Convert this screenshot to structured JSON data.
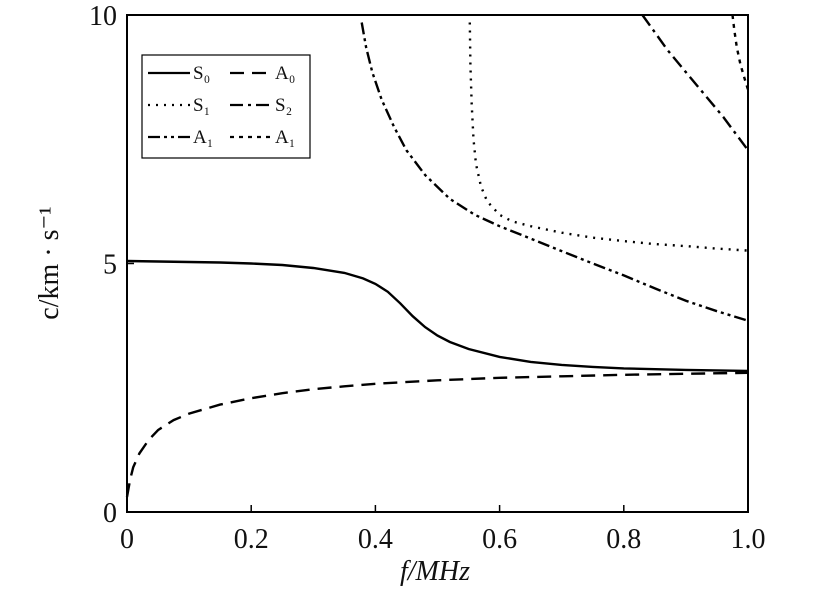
{
  "chart_data": {
    "type": "line",
    "xlabel": "f/MHz",
    "ylabel": "c/km · s⁻¹",
    "xlim": [
      0,
      1.0
    ],
    "ylim": [
      0,
      10
    ],
    "xticks": [
      "0",
      "0.2",
      "0.4",
      "0.6",
      "0.8",
      "1.0"
    ],
    "yticks": [
      "0",
      "5",
      "10"
    ],
    "grid": false,
    "legend_position": "top-left",
    "series": [
      {
        "name": "S₀",
        "style": "solid",
        "points": [
          [
            0.0,
            5.05
          ],
          [
            0.05,
            5.04
          ],
          [
            0.1,
            5.03
          ],
          [
            0.15,
            5.02
          ],
          [
            0.2,
            5.0
          ],
          [
            0.25,
            4.97
          ],
          [
            0.3,
            4.91
          ],
          [
            0.35,
            4.81
          ],
          [
            0.38,
            4.7
          ],
          [
            0.4,
            4.59
          ],
          [
            0.42,
            4.43
          ],
          [
            0.44,
            4.2
          ],
          [
            0.46,
            3.94
          ],
          [
            0.48,
            3.72
          ],
          [
            0.5,
            3.55
          ],
          [
            0.52,
            3.42
          ],
          [
            0.55,
            3.28
          ],
          [
            0.6,
            3.12
          ],
          [
            0.65,
            3.02
          ],
          [
            0.7,
            2.96
          ],
          [
            0.75,
            2.92
          ],
          [
            0.8,
            2.89
          ],
          [
            0.9,
            2.86
          ],
          [
            1.0,
            2.84
          ]
        ]
      },
      {
        "name": "A₀",
        "style": "dashed",
        "points": [
          [
            0.0,
            0.3
          ],
          [
            0.005,
            0.65
          ],
          [
            0.01,
            0.9
          ],
          [
            0.02,
            1.18
          ],
          [
            0.035,
            1.45
          ],
          [
            0.05,
            1.65
          ],
          [
            0.075,
            1.85
          ],
          [
            0.1,
            1.98
          ],
          [
            0.15,
            2.16
          ],
          [
            0.2,
            2.29
          ],
          [
            0.25,
            2.39
          ],
          [
            0.3,
            2.47
          ],
          [
            0.35,
            2.53
          ],
          [
            0.4,
            2.58
          ],
          [
            0.5,
            2.65
          ],
          [
            0.6,
            2.7
          ],
          [
            0.7,
            2.73
          ],
          [
            0.8,
            2.76
          ],
          [
            0.9,
            2.78
          ],
          [
            1.0,
            2.8
          ]
        ]
      },
      {
        "name": "S₁",
        "style": "dotted",
        "points": [
          [
            0.552,
            9.85
          ],
          [
            0.553,
            9.0
          ],
          [
            0.555,
            8.2
          ],
          [
            0.558,
            7.5
          ],
          [
            0.562,
            7.0
          ],
          [
            0.57,
            6.55
          ],
          [
            0.58,
            6.25
          ],
          [
            0.6,
            5.98
          ],
          [
            0.62,
            5.85
          ],
          [
            0.65,
            5.75
          ],
          [
            0.7,
            5.62
          ],
          [
            0.75,
            5.52
          ],
          [
            0.8,
            5.45
          ],
          [
            0.85,
            5.39
          ],
          [
            0.9,
            5.35
          ],
          [
            0.95,
            5.3
          ],
          [
            1.0,
            5.26
          ]
        ]
      },
      {
        "name": "S₂",
        "style": "dash-dot",
        "points": [
          [
            0.83,
            10.0
          ],
          [
            0.85,
            9.65
          ],
          [
            0.87,
            9.3
          ],
          [
            0.9,
            8.85
          ],
          [
            0.93,
            8.4
          ],
          [
            0.96,
            7.95
          ],
          [
            1.0,
            7.28
          ]
        ]
      },
      {
        "name": "A₁",
        "style": "dash-dot-dot",
        "points": [
          [
            0.378,
            9.85
          ],
          [
            0.385,
            9.35
          ],
          [
            0.395,
            8.85
          ],
          [
            0.41,
            8.3
          ],
          [
            0.43,
            7.75
          ],
          [
            0.45,
            7.28
          ],
          [
            0.48,
            6.78
          ],
          [
            0.52,
            6.3
          ],
          [
            0.56,
            5.98
          ],
          [
            0.6,
            5.75
          ],
          [
            0.65,
            5.5
          ],
          [
            0.7,
            5.25
          ],
          [
            0.75,
            5.0
          ],
          [
            0.8,
            4.76
          ],
          [
            0.85,
            4.5
          ],
          [
            0.9,
            4.25
          ],
          [
            0.95,
            4.04
          ],
          [
            1.0,
            3.85
          ]
        ]
      },
      {
        "name": "A₁",
        "style": "short-dash",
        "points": [
          [
            0.975,
            10.0
          ],
          [
            0.978,
            9.7
          ],
          [
            0.982,
            9.35
          ],
          [
            0.988,
            9.0
          ],
          [
            0.995,
            8.7
          ],
          [
            1.0,
            8.5
          ]
        ]
      }
    ]
  }
}
